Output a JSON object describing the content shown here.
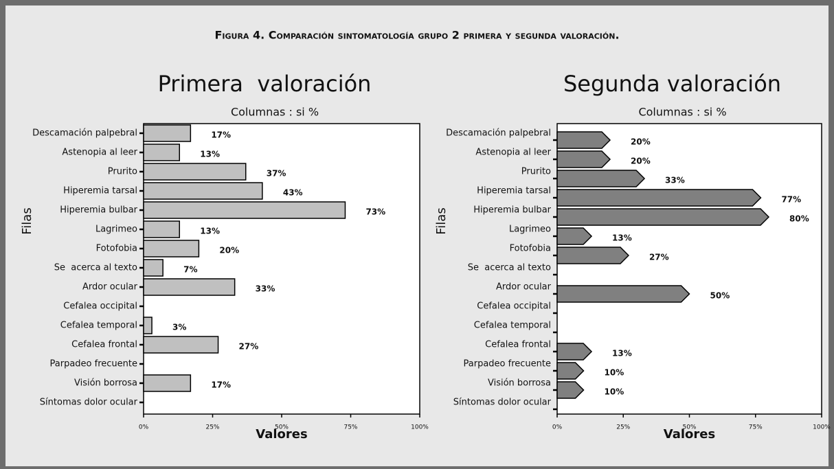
{
  "title": "Figura 4. Comparación sintomatología grupo 2 primera y segunda valoración.",
  "chart_data": [
    {
      "type": "bar",
      "orientation": "horizontal",
      "bar_style": "rect",
      "title": "Primera  valoración",
      "subtitle": "Columnas : si %",
      "xlabel": "Valores",
      "ylabel": "Filas",
      "color": "#c0c0c0",
      "categories": [
        "Descamación palpebral",
        "Astenopia al leer",
        "Prurito",
        "Hiperemia tarsal",
        "Hiperemia bulbar",
        "Lagrimeo",
        "Fotofobia",
        "Se  acerca al texto",
        "Ardor ocular",
        "Cefalea occipital",
        "Cefalea temporal",
        "Cefalea frontal",
        "Parpadeo frecuente",
        "Visión borrosa",
        "Síntomas dolor ocular"
      ],
      "values": [
        17,
        13,
        37,
        43,
        73,
        13,
        20,
        7,
        33,
        null,
        3,
        27,
        null,
        17,
        null
      ],
      "value_labels": [
        "17%",
        "13%",
        "37%",
        "43%",
        "73%",
        "13%",
        "20%",
        "7%",
        "33%",
        null,
        "3%",
        "27%",
        null,
        "17%",
        null
      ],
      "xlim": [
        0,
        100
      ],
      "xticks": [
        {
          "value": 0,
          "label": "0%"
        },
        {
          "value": 25,
          "label": "25%"
        },
        {
          "value": 50,
          "label": "50%"
        },
        {
          "value": 75,
          "label": "75%"
        },
        {
          "value": 100,
          "label": "100%"
        }
      ]
    },
    {
      "type": "bar",
      "orientation": "horizontal",
      "bar_style": "arrow",
      "title": "Segunda valoración",
      "subtitle": "Columnas : si %",
      "xlabel": "Valores",
      "ylabel": "Filas",
      "color": "#808080",
      "categories": [
        "Descamación palpebral",
        "Astenopia al leer",
        "Prurito",
        "Hiperemia tarsal",
        "Hiperemia bulbar",
        "Lagrimeo",
        "Fotofobia",
        "Se  acerca al texto",
        "Ardor ocular",
        "Cefalea occipital",
        "Cefalea temporal",
        "Cefalea frontal",
        "Parpadeo frecuente",
        "Visión borrosa",
        "Síntomas dolor ocular"
      ],
      "values": [
        20,
        20,
        33,
        77,
        80,
        13,
        27,
        null,
        50,
        null,
        null,
        13,
        10,
        10,
        null
      ],
      "value_labels": [
        "20%",
        "20%",
        "33%",
        "77%",
        "80%",
        "13%",
        "27%",
        null,
        "50%",
        null,
        null,
        "13%",
        "10%",
        "10%",
        null
      ],
      "xlim": [
        0,
        100
      ],
      "xticks": [
        {
          "value": 0,
          "label": "0%"
        },
        {
          "value": 25,
          "label": "25%"
        },
        {
          "value": 50,
          "label": "50%"
        },
        {
          "value": 75,
          "label": "75%"
        },
        {
          "value": 100,
          "label": "100%"
        }
      ]
    }
  ]
}
